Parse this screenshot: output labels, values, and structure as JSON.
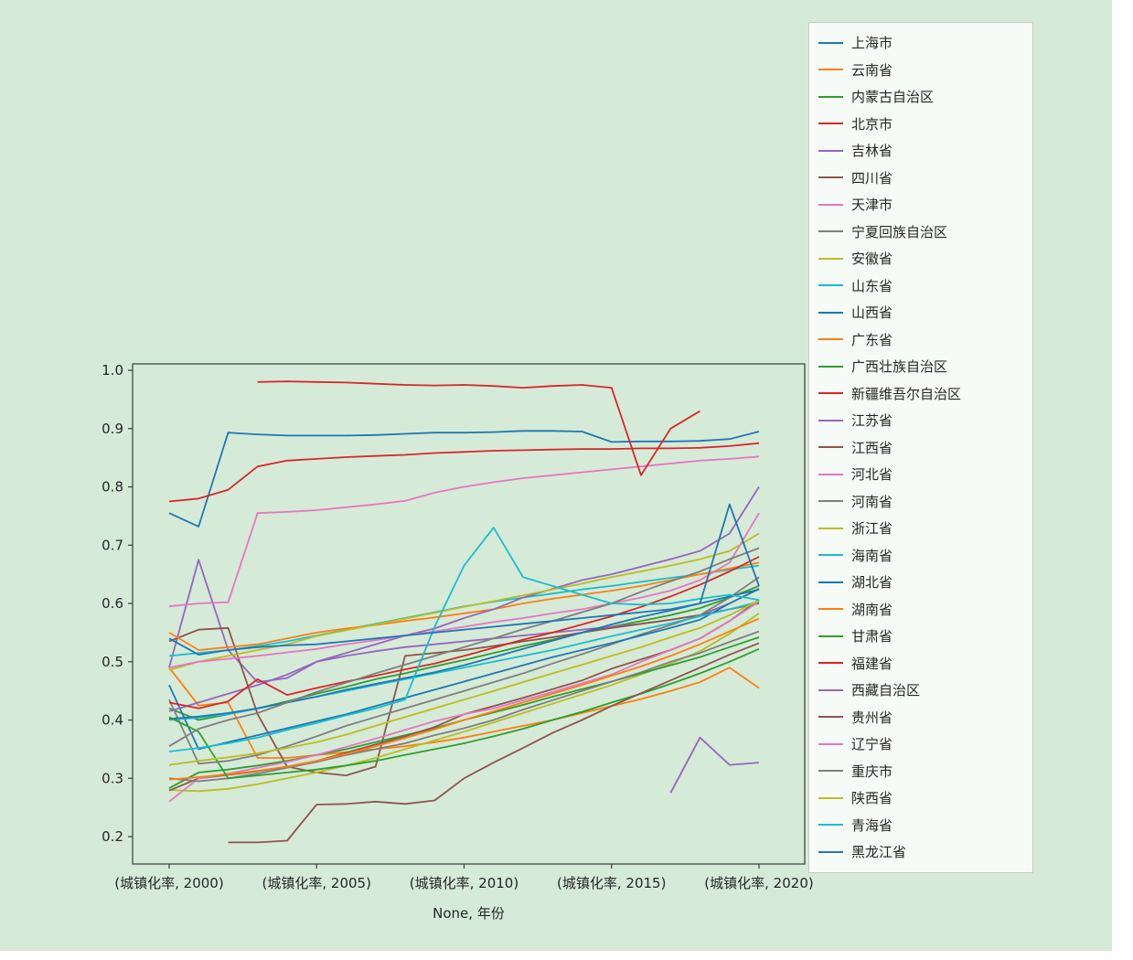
{
  "figure": {
    "background_color": "#d6ead8",
    "plot_border_color": "#3a3a3a",
    "text_color": "#262626",
    "legend_background": "rgba(255,255,255,0.8)",
    "legend_border_color": "#c9c9c9"
  },
  "chart_data": {
    "type": "line",
    "title": "",
    "xlabel": "None, 年份",
    "ylabel": "",
    "grid": false,
    "legend_position": "outside upper right",
    "xlim": [
      1998.76,
      2021.55
    ],
    "ylim": [
      0.153,
      1.011
    ],
    "y_ticks": [
      0.2,
      0.3,
      0.4,
      0.5,
      0.6,
      0.7,
      0.8,
      0.9,
      1.0
    ],
    "y_tick_labels": [
      "0.2",
      "0.3",
      "0.4",
      "0.5",
      "0.6",
      "0.7",
      "0.8",
      "0.9",
      "1.0"
    ],
    "x_tick_years": [
      2000,
      2005,
      2010,
      2015,
      2020
    ],
    "x_tick_labels": [
      "(城镇化率, 2000)",
      "(城镇化率, 2005)",
      "(城镇化率, 2010)",
      "(城镇化率, 2015)",
      "(城镇化率, 2020)"
    ],
    "x": [
      2000,
      2001,
      2002,
      2003,
      2004,
      2005,
      2006,
      2007,
      2008,
      2009,
      2010,
      2011,
      2012,
      2013,
      2014,
      2015,
      2016,
      2017,
      2018,
      2019,
      2020
    ],
    "series": [
      {
        "name": "上海市",
        "color": "#1f77b4",
        "values": [
          0.755,
          0.732,
          0.893,
          0.89,
          0.888,
          0.888,
          0.888,
          0.889,
          0.891,
          0.893,
          0.893,
          0.894,
          0.896,
          0.896,
          0.895,
          0.877,
          0.878,
          0.878,
          0.879,
          0.882,
          0.895
        ]
      },
      {
        "name": "云南省",
        "color": "#ff7f0e",
        "values": [
          0.49,
          0.425,
          0.43,
          0.335,
          0.335,
          0.34,
          0.345,
          0.35,
          0.355,
          0.362,
          0.37,
          0.38,
          0.39,
          0.4,
          0.412,
          0.424,
          0.436,
          0.45,
          0.465,
          0.49,
          0.455
        ]
      },
      {
        "name": "内蒙古自治区",
        "color": "#2ca02c",
        "values": [
          0.42,
          0.4,
          0.41,
          0.42,
          0.432,
          0.445,
          0.457,
          0.47,
          0.48,
          0.492,
          0.503,
          0.515,
          0.527,
          0.538,
          0.55,
          0.56,
          0.57,
          0.58,
          0.592,
          0.61,
          0.63
        ]
      },
      {
        "name": "北京市",
        "color": "#d62728",
        "values": [
          0.775,
          0.78,
          0.795,
          0.835,
          0.845,
          0.848,
          0.851,
          0.853,
          0.855,
          0.858,
          0.86,
          0.862,
          0.863,
          0.864,
          0.865,
          0.865,
          0.866,
          0.866,
          0.867,
          0.87,
          0.875
        ]
      },
      {
        "name": "吉林省",
        "color": "#9467bd",
        "values": [
          0.49,
          0.675,
          0.52,
          0.465,
          0.472,
          0.5,
          0.51,
          0.518,
          0.525,
          0.53,
          0.535,
          0.54,
          0.545,
          0.55,
          0.555,
          0.56,
          0.565,
          0.572,
          0.58,
          0.6,
          0.625
        ]
      },
      {
        "name": "四川省",
        "color": "#8c564b",
        "values": [
          0.535,
          0.555,
          0.558,
          0.41,
          0.32,
          0.31,
          0.305,
          0.32,
          0.51,
          0.515,
          0.52,
          0.527,
          0.535,
          0.542,
          0.55,
          0.558,
          0.565,
          0.572,
          0.58,
          0.59,
          0.6
        ]
      },
      {
        "name": "天津市",
        "color": "#e377c2",
        "values": [
          0.595,
          0.6,
          0.602,
          0.755,
          0.757,
          0.76,
          0.765,
          0.77,
          0.776,
          0.79,
          0.8,
          0.808,
          0.815,
          0.82,
          0.825,
          0.83,
          0.835,
          0.84,
          0.845,
          0.848,
          0.852
        ]
      },
      {
        "name": "宁夏回族自治区",
        "color": "#7f7f7f",
        "values": [
          0.435,
          0.325,
          0.33,
          0.34,
          0.355,
          0.372,
          0.39,
          0.405,
          0.42,
          0.435,
          0.45,
          0.465,
          0.48,
          0.497,
          0.513,
          0.53,
          0.547,
          0.563,
          0.58,
          0.61,
          0.645
        ]
      },
      {
        "name": "安徽省",
        "color": "#bcbd22",
        "values": [
          0.28,
          0.278,
          0.282,
          0.29,
          0.3,
          0.31,
          0.322,
          0.335,
          0.35,
          0.365,
          0.38,
          0.396,
          0.412,
          0.428,
          0.444,
          0.46,
          0.478,
          0.497,
          0.518,
          0.548,
          0.583
        ]
      },
      {
        "name": "山东省",
        "color": "#17becf",
        "values": [
          0.51,
          0.515,
          0.52,
          0.527,
          0.535,
          0.545,
          0.555,
          0.565,
          0.575,
          0.585,
          0.595,
          0.603,
          0.61,
          0.617,
          0.624,
          0.63,
          0.637,
          0.644,
          0.65,
          0.658,
          0.665
        ]
      },
      {
        "name": "山西省",
        "color": "#1f77b4",
        "values": [
          0.46,
          0.35,
          0.362,
          0.374,
          0.386,
          0.398,
          0.41,
          0.424,
          0.438,
          0.452,
          0.466,
          0.48,
          0.494,
          0.508,
          0.52,
          0.532,
          0.545,
          0.558,
          0.572,
          0.6,
          0.625
        ]
      },
      {
        "name": "广东省",
        "color": "#ff7f0e",
        "values": [
          0.55,
          0.52,
          0.525,
          0.53,
          0.54,
          0.55,
          0.557,
          0.563,
          0.57,
          0.576,
          0.583,
          0.59,
          0.6,
          0.608,
          0.615,
          0.622,
          0.63,
          0.64,
          0.65,
          0.66,
          0.67
        ]
      },
      {
        "name": "广西壮族自治区",
        "color": "#2ca02c",
        "values": [
          0.283,
          0.31,
          0.315,
          0.322,
          0.33,
          0.34,
          0.35,
          0.362,
          0.374,
          0.386,
          0.4,
          0.413,
          0.426,
          0.44,
          0.453,
          0.466,
          0.48,
          0.494,
          0.508,
          0.525,
          0.542
        ]
      },
      {
        "name": "新疆维吾尔自治区",
        "color": "#d62728",
        "values": [
          null,
          null,
          null,
          0.98,
          0.981,
          0.98,
          0.979,
          0.977,
          0.975,
          0.974,
          0.975,
          0.973,
          0.97,
          0.973,
          0.975,
          0.97,
          0.82,
          0.9,
          0.93,
          null,
          null
        ]
      },
      {
        "name": "江苏省",
        "color": "#9467bd",
        "values": [
          0.415,
          0.43,
          0.445,
          0.46,
          0.478,
          0.5,
          0.515,
          0.53,
          0.545,
          0.557,
          0.575,
          0.59,
          0.61,
          0.625,
          0.64,
          0.65,
          0.663,
          0.676,
          0.69,
          0.72,
          0.8
        ]
      },
      {
        "name": "江西省",
        "color": "#8c564b",
        "values": [
          0.279,
          0.3,
          0.306,
          0.312,
          0.32,
          0.33,
          0.344,
          0.358,
          0.372,
          0.388,
          0.41,
          0.424,
          0.438,
          0.453,
          0.468,
          0.488,
          0.504,
          0.52,
          0.54,
          0.57,
          0.606
        ]
      },
      {
        "name": "河北省",
        "color": "#e377c2",
        "values": [
          0.26,
          0.3,
          0.308,
          0.318,
          0.328,
          0.34,
          0.354,
          0.368,
          0.383,
          0.398,
          0.41,
          0.42,
          0.434,
          0.448,
          0.463,
          0.478,
          0.5,
          0.52,
          0.54,
          0.57,
          0.603
        ]
      },
      {
        "name": "河南省",
        "color": "#7f7f7f",
        "values": [
          0.3,
          0.295,
          0.3,
          0.308,
          0.318,
          0.328,
          0.34,
          0.35,
          0.36,
          0.374,
          0.386,
          0.4,
          0.418,
          0.434,
          0.45,
          0.466,
          0.482,
          0.5,
          0.515,
          0.534,
          0.552
        ]
      },
      {
        "name": "浙江省",
        "color": "#bcbd22",
        "values": [
          0.486,
          0.5,
          0.51,
          0.52,
          0.53,
          0.544,
          0.554,
          0.564,
          0.574,
          0.584,
          0.594,
          0.604,
          0.614,
          0.624,
          0.634,
          0.645,
          0.655,
          0.665,
          0.676,
          0.69,
          0.72
        ]
      },
      {
        "name": "海南省",
        "color": "#17becf",
        "values": [
          0.4,
          0.404,
          0.41,
          0.42,
          0.43,
          0.44,
          0.45,
          0.46,
          0.47,
          0.48,
          0.49,
          0.5,
          0.51,
          0.52,
          0.532,
          0.544,
          0.555,
          0.566,
          0.578,
          0.59,
          0.603
        ]
      },
      {
        "name": "湖北省",
        "color": "#1f77b4",
        "values": [
          0.402,
          0.406,
          0.412,
          0.42,
          0.43,
          0.44,
          0.452,
          0.462,
          0.472,
          0.482,
          0.494,
          0.508,
          0.522,
          0.536,
          0.55,
          0.564,
          0.577,
          0.588,
          0.6,
          0.612,
          0.624
        ]
      },
      {
        "name": "湖南省",
        "color": "#ff7f0e",
        "values": [
          0.298,
          0.302,
          0.307,
          0.313,
          0.32,
          0.33,
          0.342,
          0.355,
          0.369,
          0.384,
          0.4,
          0.415,
          0.43,
          0.445,
          0.46,
          0.476,
          0.492,
          0.51,
          0.53,
          0.552,
          0.574
        ]
      },
      {
        "name": "甘肃省",
        "color": "#2ca02c",
        "values": [
          0.405,
          0.38,
          0.3,
          0.305,
          0.31,
          0.315,
          0.322,
          0.33,
          0.34,
          0.35,
          0.36,
          0.372,
          0.385,
          0.4,
          0.414,
          0.43,
          0.445,
          0.462,
          0.48,
          0.5,
          0.522
        ]
      },
      {
        "name": "福建省",
        "color": "#d62728",
        "values": [
          0.43,
          0.42,
          0.432,
          0.47,
          0.443,
          0.455,
          0.466,
          0.476,
          0.487,
          0.497,
          0.51,
          0.524,
          0.538,
          0.55,
          0.564,
          0.578,
          0.594,
          0.612,
          0.632,
          0.655,
          0.68
        ]
      },
      {
        "name": "西藏自治区",
        "color": "#9467bd",
        "values": [
          null,
          null,
          null,
          null,
          null,
          null,
          null,
          null,
          null,
          null,
          null,
          null,
          null,
          null,
          null,
          null,
          null,
          0.275,
          0.37,
          0.323,
          0.327
        ]
      },
      {
        "name": "贵州省",
        "color": "#8c564b",
        "values": [
          null,
          null,
          0.19,
          0.19,
          0.193,
          0.255,
          0.256,
          0.26,
          0.256,
          0.262,
          0.3,
          0.327,
          0.352,
          0.378,
          0.4,
          0.424,
          0.446,
          0.468,
          0.49,
          0.512,
          0.532
        ]
      },
      {
        "name": "辽宁省",
        "color": "#e377c2",
        "values": [
          0.49,
          0.5,
          0.505,
          0.51,
          0.516,
          0.522,
          0.53,
          0.537,
          0.545,
          0.552,
          0.56,
          0.568,
          0.575,
          0.583,
          0.59,
          0.6,
          0.61,
          0.622,
          0.64,
          0.67,
          0.755
        ]
      },
      {
        "name": "重庆市",
        "color": "#7f7f7f",
        "values": [
          0.355,
          0.385,
          0.4,
          0.412,
          0.43,
          0.448,
          0.464,
          0.48,
          0.495,
          0.51,
          0.525,
          0.54,
          0.556,
          0.57,
          0.585,
          0.6,
          0.62,
          0.638,
          0.655,
          0.676,
          0.695
        ]
      },
      {
        "name": "陕西省",
        "color": "#bcbd22",
        "values": [
          0.323,
          0.33,
          0.336,
          0.343,
          0.352,
          0.362,
          0.375,
          0.39,
          0.405,
          0.42,
          0.435,
          0.45,
          0.465,
          0.48,
          0.495,
          0.51,
          0.525,
          0.542,
          0.558,
          0.58,
          0.605
        ]
      },
      {
        "name": "青海省",
        "color": "#17becf",
        "values": [
          0.346,
          0.352,
          0.36,
          0.37,
          0.383,
          0.395,
          0.408,
          0.42,
          0.435,
          0.56,
          0.665,
          0.73,
          0.645,
          0.63,
          0.615,
          0.6,
          0.598,
          0.6,
          0.608,
          0.615,
          0.606
        ]
      },
      {
        "name": "黑龙江省",
        "color": "#1f77b4",
        "values": [
          0.54,
          0.512,
          0.52,
          0.525,
          0.528,
          0.53,
          0.535,
          0.54,
          0.545,
          0.55,
          0.555,
          0.56,
          0.565,
          0.57,
          0.575,
          0.58,
          0.585,
          0.59,
          0.6,
          0.77,
          0.63
        ]
      }
    ]
  }
}
